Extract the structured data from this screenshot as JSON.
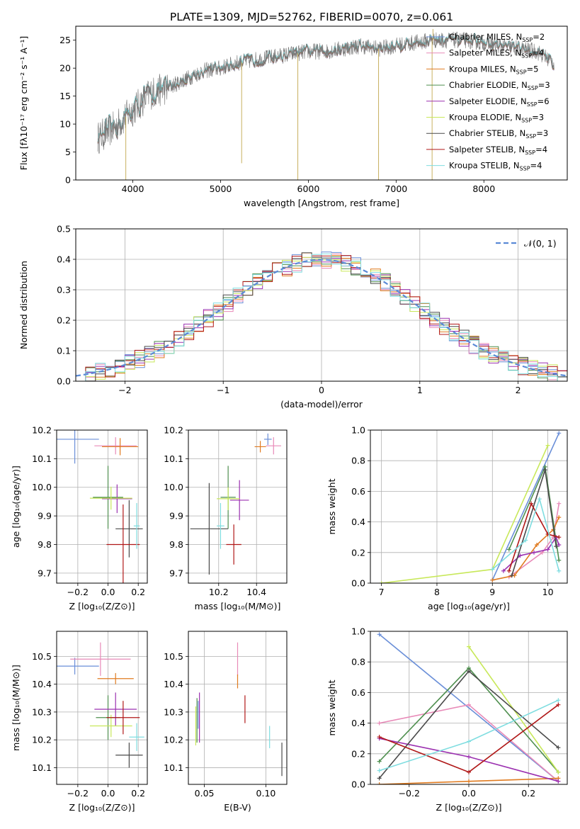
{
  "figure": {
    "title": "PLATE=1309, MJD=52762, FIBERID=0070, z=0.061"
  },
  "colors": {
    "Chabrier MILES": "#6a8fd8",
    "Salpeter MILES": "#e88ab8",
    "Kroupa MILES": "#e07b20",
    "Chabrier ELODIE": "#4f8f4f",
    "Salpeter ELODIE": "#9b30b0",
    "Kroupa ELODIE": "#c8e85a",
    "Chabrier STELIB": "#4a4a4a",
    "Salpeter STELIB": "#b01818",
    "Kroupa STELIB": "#7fdde0",
    "gauss": "#5b8ad6",
    "grid": "#b0b0b0"
  },
  "chart_data": [
    {
      "id": "spectrum",
      "type": "line",
      "xlabel": "wavelength [Angstrom, rest frame]",
      "ylabel": "Flux [fλ10⁻¹⁷ erg cm⁻² s⁻¹ A⁻¹]",
      "xlim": [
        3350,
        8950
      ],
      "ylim": [
        0,
        27.5
      ],
      "xticks": [
        "4000",
        "5000",
        "6000",
        "7000",
        "8000"
      ],
      "yticks": [
        "0",
        "5",
        "10",
        "15",
        "20",
        "25"
      ],
      "x_range_data": [
        3600,
        8800
      ],
      "continuum": {
        "x": [
          3600,
          3800,
          4000,
          4200,
          4400,
          4600,
          4800,
          5000,
          5200,
          5400,
          5600,
          5800,
          6000,
          6200,
          6400,
          6600,
          6800,
          7000,
          7200,
          7400,
          7600,
          7800,
          8000,
          8200,
          8400,
          8600,
          8800
        ],
        "y": [
          7.5,
          9.5,
          12.5,
          15.5,
          16.5,
          18.0,
          19.5,
          20.0,
          21.0,
          21.5,
          22.0,
          22.5,
          23.0,
          23.0,
          23.5,
          24.0,
          23.5,
          24.0,
          24.5,
          25.0,
          25.0,
          25.0,
          24.5,
          24.0,
          23.5,
          23.0,
          21.0
        ]
      },
      "legend": [
        {
          "label": "Chabrier MILES, N",
          "sub": "SSP",
          "suffix": "=2"
        },
        {
          "label": "Salpeter MILES, N",
          "sub": "SSP",
          "suffix": "=4"
        },
        {
          "label": "Kroupa MILES, N",
          "sub": "SSP",
          "suffix": "=5"
        },
        {
          "label": "Chabrier ELODIE, N",
          "sub": "SSP",
          "suffix": "=3"
        },
        {
          "label": "Salpeter ELODIE, N",
          "sub": "SSP",
          "suffix": "=6"
        },
        {
          "label": "Kroupa ELODIE, N",
          "sub": "SSP",
          "suffix": "=3"
        },
        {
          "label": "Chabrier STELIB, N",
          "sub": "SSP",
          "suffix": "=3"
        },
        {
          "label": "Salpeter STELIB, N",
          "sub": "SSP",
          "suffix": "=4"
        },
        {
          "label": "Kroupa STELIB, N",
          "sub": "SSP",
          "suffix": "=4"
        }
      ],
      "legend_placement": "right"
    },
    {
      "id": "residuals",
      "type": "bar",
      "xlabel": "(data-model)/error",
      "ylabel": "Normed distribution",
      "xlim": [
        -2.5,
        2.5
      ],
      "ylim": [
        0,
        0.5
      ],
      "xticks": [
        "−2",
        "−1",
        "0",
        "1",
        "2"
      ],
      "yticks": [
        "0.0",
        "0.1",
        "0.2",
        "0.3",
        "0.4",
        "0.5"
      ],
      "grid": true,
      "bin_width": 0.1,
      "bin_start": -2.5,
      "gauss_label": "𝒩(0, 1)",
      "legend_placement": "top-right"
    },
    {
      "id": "age-vs-Z",
      "type": "scatter",
      "xlabel": "Z [log₁₀(Z/Z⊙)]",
      "ylabel": "age  [log₁₀(age/yr)]",
      "xlim": [
        -0.34,
        0.26
      ],
      "ylim": [
        9.665,
        10.2
      ],
      "xticks": [
        "−0.2",
        "0.0",
        "0.2"
      ],
      "yticks": [
        "9.7",
        "9.8",
        "9.9",
        "10.0",
        "10.1",
        "10.2"
      ],
      "grid": true,
      "points": [
        {
          "model": "Chabrier MILES",
          "x": -0.22,
          "xerr": 0.16,
          "y": 10.168,
          "yerr": 0.085
        },
        {
          "model": "Salpeter MILES",
          "x": 0.05,
          "xerr": 0.14,
          "y": 10.145,
          "yerr": 0.03
        },
        {
          "model": "Kroupa MILES",
          "x": 0.08,
          "xerr": 0.12,
          "y": 10.142,
          "yerr": 0.03
        },
        {
          "model": "Chabrier ELODIE",
          "x": 0.0,
          "xerr": 0.1,
          "y": 9.965,
          "yerr": 0.11
        },
        {
          "model": "Salpeter ELODIE",
          "x": 0.06,
          "xerr": 0.1,
          "y": 9.96,
          "yerr": 0.05
        },
        {
          "model": "Kroupa ELODIE",
          "x": 0.02,
          "xerr": 0.14,
          "y": 9.962,
          "yerr": 0.04
        },
        {
          "model": "Chabrier STELIB",
          "x": 0.14,
          "xerr": 0.09,
          "y": 9.855,
          "yerr": 0.1
        },
        {
          "model": "Salpeter STELIB",
          "x": 0.1,
          "xerr": 0.11,
          "y": 9.8,
          "yerr": 0.14
        },
        {
          "model": "Kroupa STELIB",
          "x": 0.19,
          "xerr": 0.02,
          "y": 9.865,
          "yerr": 0.08
        }
      ]
    },
    {
      "id": "age-vs-mass",
      "type": "scatter",
      "xlabel": "mass [log₁₀(M/M⊙)]",
      "ylabel": "",
      "xlim": [
        10.04,
        10.56
      ],
      "ylim": [
        9.665,
        10.2
      ],
      "xticks": [
        "10.2",
        "10.4"
      ],
      "yticks": [
        "9.7",
        "9.8",
        "9.9",
        "10.0",
        "10.1",
        "10.2"
      ],
      "grid": true,
      "points": [
        {
          "model": "Chabrier MILES",
          "x": 10.46,
          "xerr": 0.02,
          "y": 10.168,
          "yerr": 0.02
        },
        {
          "model": "Salpeter MILES",
          "x": 10.49,
          "xerr": 0.04,
          "y": 10.145,
          "yerr": 0.03
        },
        {
          "model": "Kroupa MILES",
          "x": 10.42,
          "xerr": 0.03,
          "y": 10.142,
          "yerr": 0.02
        },
        {
          "model": "Chabrier ELODIE",
          "x": 10.25,
          "xerr": 0.04,
          "y": 9.965,
          "yerr": 0.11
        },
        {
          "model": "Salpeter ELODIE",
          "x": 10.31,
          "xerr": 0.05,
          "y": 9.955,
          "yerr": 0.07
        },
        {
          "model": "Kroupa ELODIE",
          "x": 10.25,
          "xerr": 0.06,
          "y": 9.96,
          "yerr": 0.04
        },
        {
          "model": "Chabrier STELIB",
          "x": 10.15,
          "xerr": 0.1,
          "y": 9.855,
          "yerr": 0.16
        },
        {
          "model": "Salpeter STELIB",
          "x": 10.28,
          "xerr": 0.04,
          "y": 9.8,
          "yerr": 0.07
        },
        {
          "model": "Kroupa STELIB",
          "x": 10.21,
          "xerr": 0.02,
          "y": 9.865,
          "yerr": 0.08
        }
      ]
    },
    {
      "id": "weight-vs-age",
      "type": "line",
      "xlabel": "age  [log₁₀(age/yr)]",
      "ylabel": "mass weight",
      "xlim": [
        6.8,
        10.35
      ],
      "ylim": [
        0,
        1.0
      ],
      "xticks": [
        "7",
        "8",
        "9",
        "10"
      ],
      "yticks": [
        "0.0",
        "0.2",
        "0.4",
        "0.6",
        "0.8",
        "1.0"
      ],
      "grid": true,
      "series": [
        {
          "model": "Chabrier MILES",
          "x": [
            9.0,
            10.2
          ],
          "y": [
            0.02,
            0.98
          ]
        },
        {
          "model": "Salpeter MILES",
          "x": [
            9.3,
            9.9,
            10.1,
            10.2
          ],
          "y": [
            0.04,
            0.2,
            0.3,
            0.52
          ]
        },
        {
          "model": "Kroupa MILES",
          "x": [
            9.0,
            9.4,
            9.8,
            10.1,
            10.2
          ],
          "y": [
            0.02,
            0.05,
            0.25,
            0.35,
            0.43
          ]
        },
        {
          "model": "Chabrier ELODIE",
          "x": [
            9.3,
            9.95,
            10.2
          ],
          "y": [
            0.22,
            0.76,
            0.15
          ]
        },
        {
          "model": "Salpeter ELODIE",
          "x": [
            9.2,
            9.5,
            9.75,
            10.0,
            10.15,
            10.2
          ],
          "y": [
            0.08,
            0.18,
            0.2,
            0.22,
            0.3,
            0.25
          ]
        },
        {
          "model": "Kroupa ELODIE",
          "x": [
            7.0,
            9.0,
            10.0
          ],
          "y": [
            0.0,
            0.09,
            0.9
          ]
        },
        {
          "model": "Chabrier STELIB",
          "x": [
            9.35,
            9.95,
            10.15
          ],
          "y": [
            0.05,
            0.74,
            0.24
          ]
        },
        {
          "model": "Salpeter STELIB",
          "x": [
            9.3,
            9.7,
            10.0,
            10.2
          ],
          "y": [
            0.08,
            0.52,
            0.32,
            0.3
          ]
        },
        {
          "model": "Kroupa STELIB",
          "x": [
            9.0,
            9.6,
            9.85,
            10.2
          ],
          "y": [
            0.09,
            0.28,
            0.55,
            0.08
          ]
        }
      ]
    },
    {
      "id": "mass-vs-Z",
      "type": "scatter",
      "xlabel": "Z [log₁₀(Z/Z⊙)]",
      "ylabel": "mass [log₁₀(M/M⊙)]",
      "xlim": [
        -0.34,
        0.26
      ],
      "ylim": [
        10.04,
        10.59
      ],
      "xticks": [
        "−0.2",
        "0.0",
        "0.2"
      ],
      "yticks": [
        "10.1",
        "10.2",
        "10.3",
        "10.4",
        "10.5"
      ],
      "grid": true,
      "points": [
        {
          "model": "Chabrier MILES",
          "x": -0.22,
          "xerr": 0.16,
          "y": 10.465,
          "yerr": 0.03
        },
        {
          "model": "Salpeter MILES",
          "x": -0.05,
          "xerr": 0.2,
          "y": 10.49,
          "yerr": 0.06
        },
        {
          "model": "Kroupa MILES",
          "x": 0.05,
          "xerr": 0.12,
          "y": 10.42,
          "yerr": 0.02
        },
        {
          "model": "Chabrier ELODIE",
          "x": 0.0,
          "xerr": 0.08,
          "y": 10.28,
          "yerr": 0.08
        },
        {
          "model": "Salpeter ELODIE",
          "x": 0.05,
          "xerr": 0.14,
          "y": 10.31,
          "yerr": 0.06
        },
        {
          "model": "Kroupa ELODIE",
          "x": 0.02,
          "xerr": 0.14,
          "y": 10.25,
          "yerr": 0.04
        },
        {
          "model": "Chabrier STELIB",
          "x": 0.14,
          "xerr": 0.09,
          "y": 10.145,
          "yerr": 0.045
        },
        {
          "model": "Salpeter STELIB",
          "x": 0.1,
          "xerr": 0.11,
          "y": 10.28,
          "yerr": 0.06
        },
        {
          "model": "Kroupa STELIB",
          "x": 0.19,
          "xerr": 0.05,
          "y": 10.21,
          "yerr": 0.05
        }
      ]
    },
    {
      "id": "mass-vs-ebv",
      "type": "scatter",
      "xlabel": "E(B-V)",
      "ylabel": "",
      "xlim": [
        0.037,
        0.117
      ],
      "ylim": [
        10.04,
        10.59
      ],
      "xticks": [
        "0.05",
        "0.10"
      ],
      "yticks": [
        "10.1",
        "10.2",
        "10.3",
        "10.4",
        "10.5"
      ],
      "grid": true,
      "points": [
        {
          "model": "Chabrier MILES",
          "x": 0.045,
          "xerr": 0.0,
          "y": 10.29,
          "yerr": 0.05
        },
        {
          "model": "Salpeter MILES",
          "x": 0.077,
          "xerr": 0.0,
          "y": 10.49,
          "yerr": 0.06
        },
        {
          "model": "Kroupa MILES",
          "x": 0.077,
          "xerr": 0.0,
          "y": 10.41,
          "yerr": 0.025
        },
        {
          "model": "Chabrier ELODIE",
          "x": 0.044,
          "xerr": 0.0,
          "y": 10.27,
          "yerr": 0.08
        },
        {
          "model": "Salpeter ELODIE",
          "x": 0.046,
          "xerr": 0.0,
          "y": 10.28,
          "yerr": 0.09
        },
        {
          "model": "Kroupa ELODIE",
          "x": 0.043,
          "xerr": 0.0,
          "y": 10.25,
          "yerr": 0.07
        },
        {
          "model": "Chabrier STELIB",
          "x": 0.113,
          "xerr": 0.0,
          "y": 10.13,
          "yerr": 0.06
        },
        {
          "model": "Salpeter STELIB",
          "x": 0.083,
          "xerr": 0.0,
          "y": 10.31,
          "yerr": 0.05
        },
        {
          "model": "Kroupa STELIB",
          "x": 0.103,
          "xerr": 0.0,
          "y": 10.21,
          "yerr": 0.04
        }
      ]
    },
    {
      "id": "weight-vs-Z",
      "type": "line",
      "xlabel": "Z [log₁₀(Z/Z⊙)]",
      "ylabel": "mass weight",
      "xlim": [
        -0.33,
        0.33
      ],
      "ylim": [
        0,
        1.0
      ],
      "xticks": [
        "−0.2",
        "0.0",
        "0.2"
      ],
      "yticks": [
        "0.0",
        "0.2",
        "0.4",
        "0.6",
        "0.8",
        "1.0"
      ],
      "grid": true,
      "series": [
        {
          "model": "Chabrier MILES",
          "x": [
            -0.3,
            0.3
          ],
          "y": [
            0.98,
            0.02
          ]
        },
        {
          "model": "Salpeter MILES",
          "x": [
            -0.3,
            0.0,
            0.3
          ],
          "y": [
            0.4,
            0.52,
            0.02
          ]
        },
        {
          "model": "Kroupa MILES",
          "x": [
            -0.3,
            0.0,
            0.3
          ],
          "y": [
            0.0,
            0.02,
            0.04
          ]
        },
        {
          "model": "Chabrier ELODIE",
          "x": [
            -0.3,
            0.0,
            0.3
          ],
          "y": [
            0.15,
            0.76,
            0.08
          ]
        },
        {
          "model": "Salpeter ELODIE",
          "x": [
            -0.3,
            0.0,
            0.3
          ],
          "y": [
            0.3,
            0.18,
            0.02
          ]
        },
        {
          "model": "Kroupa ELODIE",
          "x": [
            0.0,
            0.3
          ],
          "y": [
            0.9,
            0.08
          ]
        },
        {
          "model": "Chabrier STELIB",
          "x": [
            -0.3,
            0.0,
            0.3
          ],
          "y": [
            0.04,
            0.74,
            0.24
          ]
        },
        {
          "model": "Salpeter STELIB",
          "x": [
            -0.3,
            0.0,
            0.3
          ],
          "y": [
            0.31,
            0.08,
            0.52
          ]
        },
        {
          "model": "Kroupa STELIB",
          "x": [
            -0.3,
            0.0,
            0.3
          ],
          "y": [
            0.09,
            0.28,
            0.55
          ]
        }
      ]
    }
  ]
}
